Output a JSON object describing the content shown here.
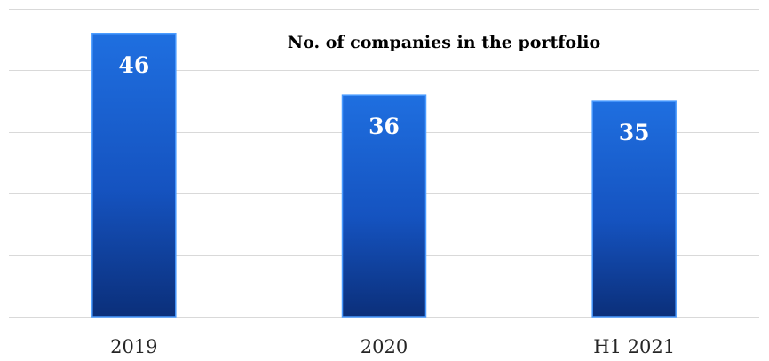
{
  "chart_data": {
    "type": "bar",
    "title": "No. of companies in the portfolio",
    "categories": [
      "2019",
      "2020",
      "H1 2021"
    ],
    "values": [
      46,
      36,
      35
    ],
    "ylim": [
      0,
      50
    ],
    "grid": true,
    "data_labels": true,
    "colors": {
      "bar_top": "#1f6fe0",
      "bar_bottom": "#0b2f7a",
      "bar_edge": "#4a9bff",
      "gridline": "#d9d9d9"
    }
  }
}
